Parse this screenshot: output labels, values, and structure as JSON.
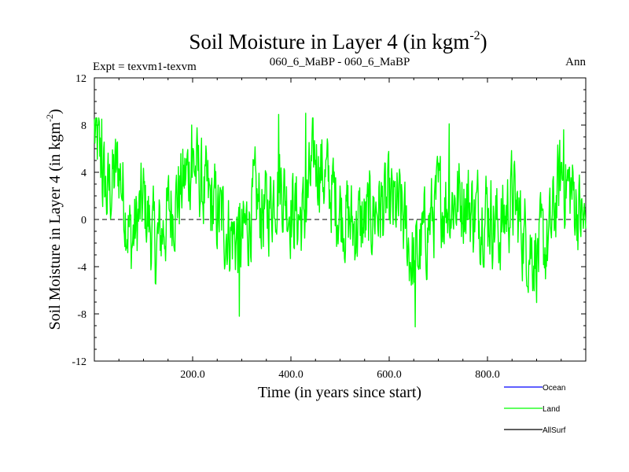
{
  "chart_data": {
    "type": "line",
    "title": "Soil Moisture in Layer 4 (in kgm",
    "title_exp": "-2",
    "title_close": ")",
    "subtitle_left": "Expt = texvm1-texvm",
    "subtitle_center": "060_6_MaBP - 060_6_MaBP",
    "subtitle_right": "Ann",
    "ylabel": "Soil Moisture in Layer 4 (in kgm",
    "ylabel_exp": "-2",
    "ylabel_close": ")",
    "xlabel": "Time (in years since start)",
    "xlim": [
      0,
      1000
    ],
    "ylim": [
      -12,
      12
    ],
    "x_ticks": [
      200,
      400,
      600,
      800
    ],
    "x_tick_labels": [
      "200.0",
      "400.0",
      "600.0",
      "800.0"
    ],
    "y_ticks": [
      -12,
      -8,
      -4,
      0,
      4,
      8,
      12
    ],
    "y_tick_labels": [
      "-12",
      "-8",
      "-4",
      "0",
      "4",
      "8",
      "12"
    ],
    "zero_line": "dashed",
    "series": [
      {
        "name": "Land",
        "color": "#00ff00",
        "x": [
          0,
          25,
          50,
          75,
          100,
          125,
          150,
          175,
          200,
          225,
          250,
          275,
          300,
          325,
          350,
          375,
          400,
          425,
          450,
          475,
          500,
          525,
          550,
          575,
          600,
          625,
          650,
          675,
          700,
          725,
          750,
          775,
          800,
          825,
          850,
          875,
          900,
          925,
          950,
          975,
          1000
        ],
        "values": [
          7.5,
          2.0,
          4.5,
          -2.0,
          1.5,
          -2.5,
          0.5,
          2.5,
          5.0,
          2.0,
          0.5,
          -1.0,
          -2.0,
          1.5,
          0.5,
          3.5,
          1.0,
          0.0,
          5.5,
          3.0,
          1.0,
          -0.5,
          -0.5,
          1.0,
          1.0,
          0.5,
          -4.0,
          -1.0,
          1.5,
          1.5,
          2.0,
          0.5,
          1.0,
          -1.0,
          2.0,
          -1.5,
          -3.0,
          -2.0,
          4.0,
          2.0,
          -1.0
        ],
        "annotated_extremes": [
          {
            "x": 15,
            "value": 8.5
          },
          {
            "x": 198,
            "value": 8.0
          },
          {
            "x": 295,
            "value": -8.2
          },
          {
            "x": 375,
            "value": 8.9
          },
          {
            "x": 430,
            "value": 9.0
          },
          {
            "x": 653,
            "value": -9.1
          },
          {
            "x": 722,
            "value": 8.1
          },
          {
            "x": 955,
            "value": 7.6
          }
        ]
      },
      {
        "name": "Ocean",
        "color": "#0000ff",
        "values": []
      },
      {
        "name": "AllSurf",
        "color": "#000000",
        "values": []
      }
    ],
    "legend": {
      "position": "bottom-right",
      "entries": [
        {
          "label": "Ocean",
          "color": "#0000ff"
        },
        {
          "label": "Land",
          "color": "#00ff00"
        },
        {
          "label": "AllSurf",
          "color": "#000000"
        }
      ]
    }
  }
}
